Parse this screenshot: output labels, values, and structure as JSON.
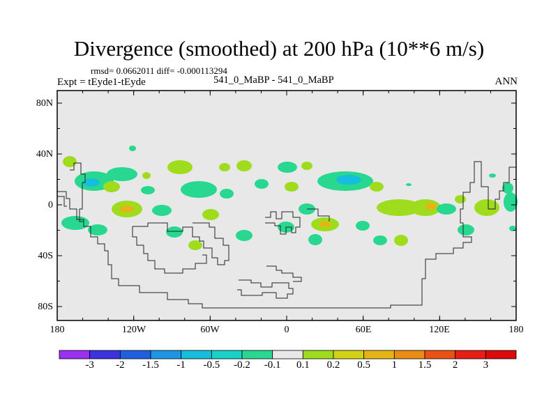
{
  "title": "Divergence (smoothed) at 200 hPa (10**6 m/s)",
  "stats": "rmsd= 0.0662011 diff= -0.000113294",
  "experiment": "Expt = tEyde1-tEyde",
  "cases": "541_0_MaBP - 541_0_MaBP",
  "season": "ANN",
  "lat_labels": [
    "80N",
    "40N",
    "0",
    "40S",
    "80S"
  ],
  "lon_labels": [
    "180",
    "120W",
    "60W",
    "0",
    "60E",
    "120E",
    "180"
  ],
  "colorbar": {
    "labels": [
      "-3",
      "-2",
      "-1.5",
      "-1",
      "-0.5",
      "-0.2",
      "-0.1",
      "0.1",
      "0.2",
      "0.5",
      "1",
      "1.5",
      "2",
      "3"
    ],
    "colors": [
      "#9b30f0",
      "#3c32e0",
      "#1e60e0",
      "#1e96e6",
      "#14bedc",
      "#18d2c8",
      "#28d890",
      "#e8e8e8",
      "#a0dc1e",
      "#d2d214",
      "#e6b414",
      "#eb8c14",
      "#eb5014",
      "#e61e14",
      "#dc0a0a"
    ]
  },
  "map_background": "#e8e8e8"
}
